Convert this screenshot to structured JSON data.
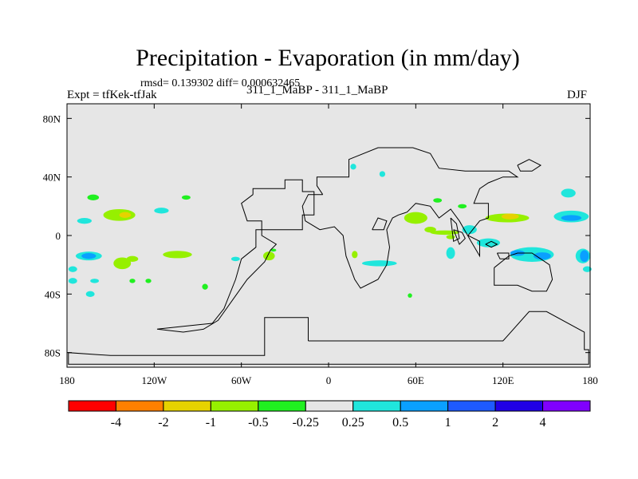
{
  "figure": {
    "title": "Precipitation - Evaporation (in mm/day)",
    "stats": "rmsd= 0.139302 diff= 0.000632465",
    "left_label": "Expt = tfKek-tfJak",
    "center_label": "311_1_MaBP - 311_1_MaBP",
    "right_label": "DJF"
  },
  "chart_data": {
    "type": "heatmap",
    "title": "Precipitation - Evaporation (in mm/day)",
    "xlabel": "",
    "ylabel": "",
    "xlim": [
      -180,
      180
    ],
    "ylim": [
      -90,
      90
    ],
    "x_ticks": [
      {
        "value": -180,
        "label": "180"
      },
      {
        "value": -120,
        "label": "120W"
      },
      {
        "value": -60,
        "label": "60W"
      },
      {
        "value": 0,
        "label": "0"
      },
      {
        "value": 60,
        "label": "60E"
      },
      {
        "value": 120,
        "label": "120E"
      },
      {
        "value": 180,
        "label": "180"
      }
    ],
    "y_ticks": [
      {
        "value": 80,
        "label": "80N"
      },
      {
        "value": 40,
        "label": "40N"
      },
      {
        "value": 0,
        "label": "0"
      },
      {
        "value": -40,
        "label": "40S"
      },
      {
        "value": -80,
        "label": "80S"
      }
    ],
    "background_color": "#e6e6e6",
    "colorbar": {
      "colors": [
        "#ff0000",
        "#ff8000",
        "#e6d200",
        "#96f000",
        "#20f020",
        "#e6e6e6",
        "#20e6dc",
        "#0aa0ff",
        "#1e5aff",
        "#2000e6",
        "#8000ff"
      ],
      "levels": [
        "-4",
        "-2",
        "-1",
        "-0.5",
        "-0.25",
        "0.25",
        "0.5",
        "1",
        "2",
        "4"
      ]
    },
    "anomaly_regions": [
      {
        "lon": -144,
        "lat": 14,
        "rx": 11,
        "ry": 4,
        "value": -0.5
      },
      {
        "lon": -140,
        "lat": 14,
        "rx": 4,
        "ry": 2,
        "value": -1
      },
      {
        "lon": -115,
        "lat": 17,
        "rx": 5,
        "ry": 2,
        "value": 0.5
      },
      {
        "lon": -168,
        "lat": 10,
        "rx": 5,
        "ry": 2,
        "value": 0.5
      },
      {
        "lon": -162,
        "lat": 26,
        "rx": 4,
        "ry": 2,
        "value": -0.25
      },
      {
        "lon": -158,
        "lat": 8,
        "rx": 3,
        "ry": 2,
        "value": 0.25
      },
      {
        "lon": -165,
        "lat": -14,
        "rx": 9,
        "ry": 3,
        "value": 0.5
      },
      {
        "lon": -165,
        "lat": -14,
        "rx": 5,
        "ry": 2,
        "value": 1
      },
      {
        "lon": -142,
        "lat": -19,
        "rx": 6,
        "ry": 4,
        "value": -0.5
      },
      {
        "lon": -135,
        "lat": -16,
        "rx": 4,
        "ry": 2,
        "value": -0.5
      },
      {
        "lon": -104,
        "lat": -13,
        "rx": 10,
        "ry": 2.5,
        "value": -0.5
      },
      {
        "lon": -176,
        "lat": -23,
        "rx": 3,
        "ry": 2,
        "value": 0.5
      },
      {
        "lon": -161,
        "lat": -31,
        "rx": 3,
        "ry": 1.5,
        "value": 0.5
      },
      {
        "lon": -176,
        "lat": -31,
        "rx": 3,
        "ry": 2,
        "value": 0.5
      },
      {
        "lon": -164,
        "lat": -40,
        "rx": 3,
        "ry": 2,
        "value": 0.5
      },
      {
        "lon": -124,
        "lat": -31,
        "rx": 2,
        "ry": 1.5,
        "value": -0.25
      },
      {
        "lon": -135,
        "lat": -31,
        "rx": 2,
        "ry": 1.5,
        "value": -0.25
      },
      {
        "lon": -98,
        "lat": 26,
        "rx": 3,
        "ry": 1.5,
        "value": -0.25
      },
      {
        "lon": -85,
        "lat": -35,
        "rx": 2,
        "ry": 2,
        "value": -0.25
      },
      {
        "lon": -64,
        "lat": -16,
        "rx": 3,
        "ry": 1.5,
        "value": 0.5
      },
      {
        "lon": -41,
        "lat": -14,
        "rx": 4,
        "ry": 3,
        "value": -0.5
      },
      {
        "lon": -38,
        "lat": -10,
        "rx": 2,
        "ry": 1,
        "value": -0.25
      },
      {
        "lon": 17,
        "lat": 47,
        "rx": 2,
        "ry": 2,
        "value": 0.5
      },
      {
        "lon": 37,
        "lat": 42,
        "rx": 2,
        "ry": 2,
        "value": 0.5
      },
      {
        "lon": 18,
        "lat": -13,
        "rx": 2,
        "ry": 2.5,
        "value": -0.5
      },
      {
        "lon": 20,
        "lat": 10,
        "rx": 3,
        "ry": 2,
        "value": 0.25
      },
      {
        "lon": 35,
        "lat": -19,
        "rx": 12,
        "ry": 2,
        "value": 0.5
      },
      {
        "lon": 60,
        "lat": 12,
        "rx": 8,
        "ry": 4,
        "value": -0.5
      },
      {
        "lon": 70,
        "lat": 4,
        "rx": 4,
        "ry": 2,
        "value": -0.5
      },
      {
        "lon": 70,
        "lat": 8,
        "rx": 2,
        "ry": 2,
        "value": 0.25
      },
      {
        "lon": 80,
        "lat": 2,
        "rx": 10,
        "ry": 1.5,
        "value": -0.5
      },
      {
        "lon": 123,
        "lat": 12,
        "rx": 15,
        "ry": 3,
        "value": -0.5
      },
      {
        "lon": 125,
        "lat": 13,
        "rx": 6,
        "ry": 2,
        "value": -1
      },
      {
        "lon": 84,
        "lat": -12,
        "rx": 3,
        "ry": 4,
        "value": 0.5
      },
      {
        "lon": 97,
        "lat": 4,
        "rx": 5,
        "ry": 3,
        "value": 0.5
      },
      {
        "lon": 110,
        "lat": -5,
        "rx": 8,
        "ry": 3,
        "value": 0.5
      },
      {
        "lon": 140,
        "lat": -13,
        "rx": 15,
        "ry": 5,
        "value": 0.5
      },
      {
        "lon": 130,
        "lat": -12,
        "rx": 5,
        "ry": 2,
        "value": 1
      },
      {
        "lon": 147,
        "lat": -14,
        "rx": 6,
        "ry": 2.5,
        "value": 1
      },
      {
        "lon": 167,
        "lat": 13,
        "rx": 12,
        "ry": 4,
        "value": 0.5
      },
      {
        "lon": 167,
        "lat": 12,
        "rx": 7,
        "ry": 2,
        "value": 1
      },
      {
        "lon": 165,
        "lat": 29,
        "rx": 5,
        "ry": 3,
        "value": 0.5
      },
      {
        "lon": 175,
        "lat": -14,
        "rx": 5,
        "ry": 5,
        "value": 0.5
      },
      {
        "lon": 176,
        "lat": -14,
        "rx": 3,
        "ry": 4,
        "value": 1
      },
      {
        "lon": 178,
        "lat": -23,
        "rx": 3,
        "ry": 2,
        "value": 0.5
      },
      {
        "lon": 158,
        "lat": -2,
        "rx": 6,
        "ry": 1.5,
        "value": 0.25
      },
      {
        "lon": 84,
        "lat": -1,
        "rx": 3,
        "ry": 1.5,
        "value": -0.5
      },
      {
        "lon": 56,
        "lat": -41,
        "rx": 1.5,
        "ry": 1.5,
        "value": -0.25
      },
      {
        "lon": 92,
        "lat": 20,
        "rx": 3,
        "ry": 1.5,
        "value": -0.25
      },
      {
        "lon": 75,
        "lat": 24,
        "rx": 3,
        "ry": 1.5,
        "value": -0.25
      }
    ],
    "continent_outlines": [
      [
        [
          -14,
          -72
        ],
        [
          -14,
          -56
        ],
        [
          -44,
          -56
        ],
        [
          -44,
          -82
        ],
        [
          -150,
          -82
        ],
        [
          -179,
          -80
        ],
        [
          -179,
          -88
        ],
        [
          179,
          -88
        ],
        [
          179,
          -78
        ],
        [
          176,
          -78
        ],
        [
          176,
          -66
        ],
        [
          150,
          -52
        ],
        [
          138,
          -52
        ],
        [
          120,
          -72
        ],
        [
          -10,
          -72
        ],
        [
          -14,
          -72
        ]
      ],
      [
        [
          -52,
          28
        ],
        [
          -52,
          32
        ],
        [
          -30,
          32
        ],
        [
          -30,
          38
        ],
        [
          -18,
          38
        ],
        [
          -18,
          30
        ],
        [
          -10,
          30
        ],
        [
          -10,
          14
        ],
        [
          -18,
          14
        ],
        [
          -18,
          4
        ],
        [
          -50,
          4
        ],
        [
          -50,
          -8
        ],
        [
          -60,
          -16
        ],
        [
          -64,
          -30
        ],
        [
          -72,
          -50
        ],
        [
          -80,
          -60
        ],
        [
          -100,
          -62
        ],
        [
          -118,
          -64
        ],
        [
          -100,
          -66
        ],
        [
          -86,
          -64
        ],
        [
          -76,
          -58
        ],
        [
          -66,
          -44
        ],
        [
          -56,
          -30
        ],
        [
          -44,
          -18
        ],
        [
          -40,
          -10
        ],
        [
          -36,
          -6
        ],
        [
          -46,
          0
        ],
        [
          -46,
          10
        ],
        [
          -56,
          10
        ],
        [
          -60,
          22
        ],
        [
          -52,
          28
        ]
      ],
      [
        [
          -4,
          28
        ],
        [
          -8,
          34
        ],
        [
          -8,
          40
        ],
        [
          14,
          40
        ],
        [
          14,
          52
        ],
        [
          34,
          60
        ],
        [
          58,
          60
        ],
        [
          70,
          56
        ],
        [
          76,
          46
        ],
        [
          94,
          44
        ],
        [
          110,
          44
        ],
        [
          124,
          44
        ],
        [
          130,
          40
        ],
        [
          120,
          40
        ],
        [
          110,
          36
        ],
        [
          104,
          32
        ],
        [
          100,
          22
        ],
        [
          110,
          22
        ],
        [
          110,
          12
        ],
        [
          104,
          10
        ],
        [
          96,
          0
        ],
        [
          104,
          -4
        ],
        [
          104,
          -14
        ],
        [
          98,
          -4
        ],
        [
          90,
          10
        ],
        [
          84,
          18
        ],
        [
          76,
          12
        ],
        [
          70,
          20
        ],
        [
          60,
          22
        ],
        [
          54,
          16
        ],
        [
          48,
          14
        ],
        [
          44,
          12
        ],
        [
          40,
          4
        ],
        [
          42,
          -8
        ],
        [
          40,
          -20
        ],
        [
          34,
          -30
        ],
        [
          22,
          -36
        ],
        [
          18,
          -30
        ],
        [
          12,
          -14
        ],
        [
          10,
          0
        ],
        [
          4,
          6
        ],
        [
          -6,
          4
        ],
        [
          -16,
          10
        ],
        [
          -18,
          20
        ],
        [
          -14,
          28
        ],
        [
          -4,
          28
        ]
      ],
      [
        [
          114,
          -22
        ],
        [
          114,
          -34
        ],
        [
          130,
          -34
        ],
        [
          140,
          -38
        ],
        [
          150,
          -38
        ],
        [
          154,
          -30
        ],
        [
          152,
          -20
        ],
        [
          140,
          -12
        ],
        [
          130,
          -12
        ],
        [
          124,
          -14
        ],
        [
          114,
          -22
        ]
      ],
      [
        [
          30,
          4
        ],
        [
          34,
          12
        ],
        [
          40,
          10
        ],
        [
          38,
          4
        ],
        [
          30,
          4
        ]
      ],
      [
        [
          116,
          -12
        ],
        [
          118,
          -16
        ],
        [
          124,
          -16
        ],
        [
          124,
          -12
        ],
        [
          116,
          -12
        ]
      ],
      [
        [
          84,
          12
        ],
        [
          88,
          8
        ],
        [
          90,
          -2
        ],
        [
          86,
          -4
        ],
        [
          84,
          12
        ]
      ],
      [
        [
          108,
          -6
        ],
        [
          112,
          -8
        ],
        [
          116,
          -6
        ],
        [
          112,
          -4
        ],
        [
          108,
          -6
        ]
      ],
      [
        [
          130,
          48
        ],
        [
          138,
          52
        ],
        [
          146,
          48
        ],
        [
          140,
          44
        ],
        [
          132,
          44
        ],
        [
          130,
          48
        ]
      ],
      [
        [
          86,
          4
        ],
        [
          92,
          2
        ],
        [
          94,
          -2
        ],
        [
          90,
          -6
        ],
        [
          86,
          4
        ]
      ]
    ]
  }
}
